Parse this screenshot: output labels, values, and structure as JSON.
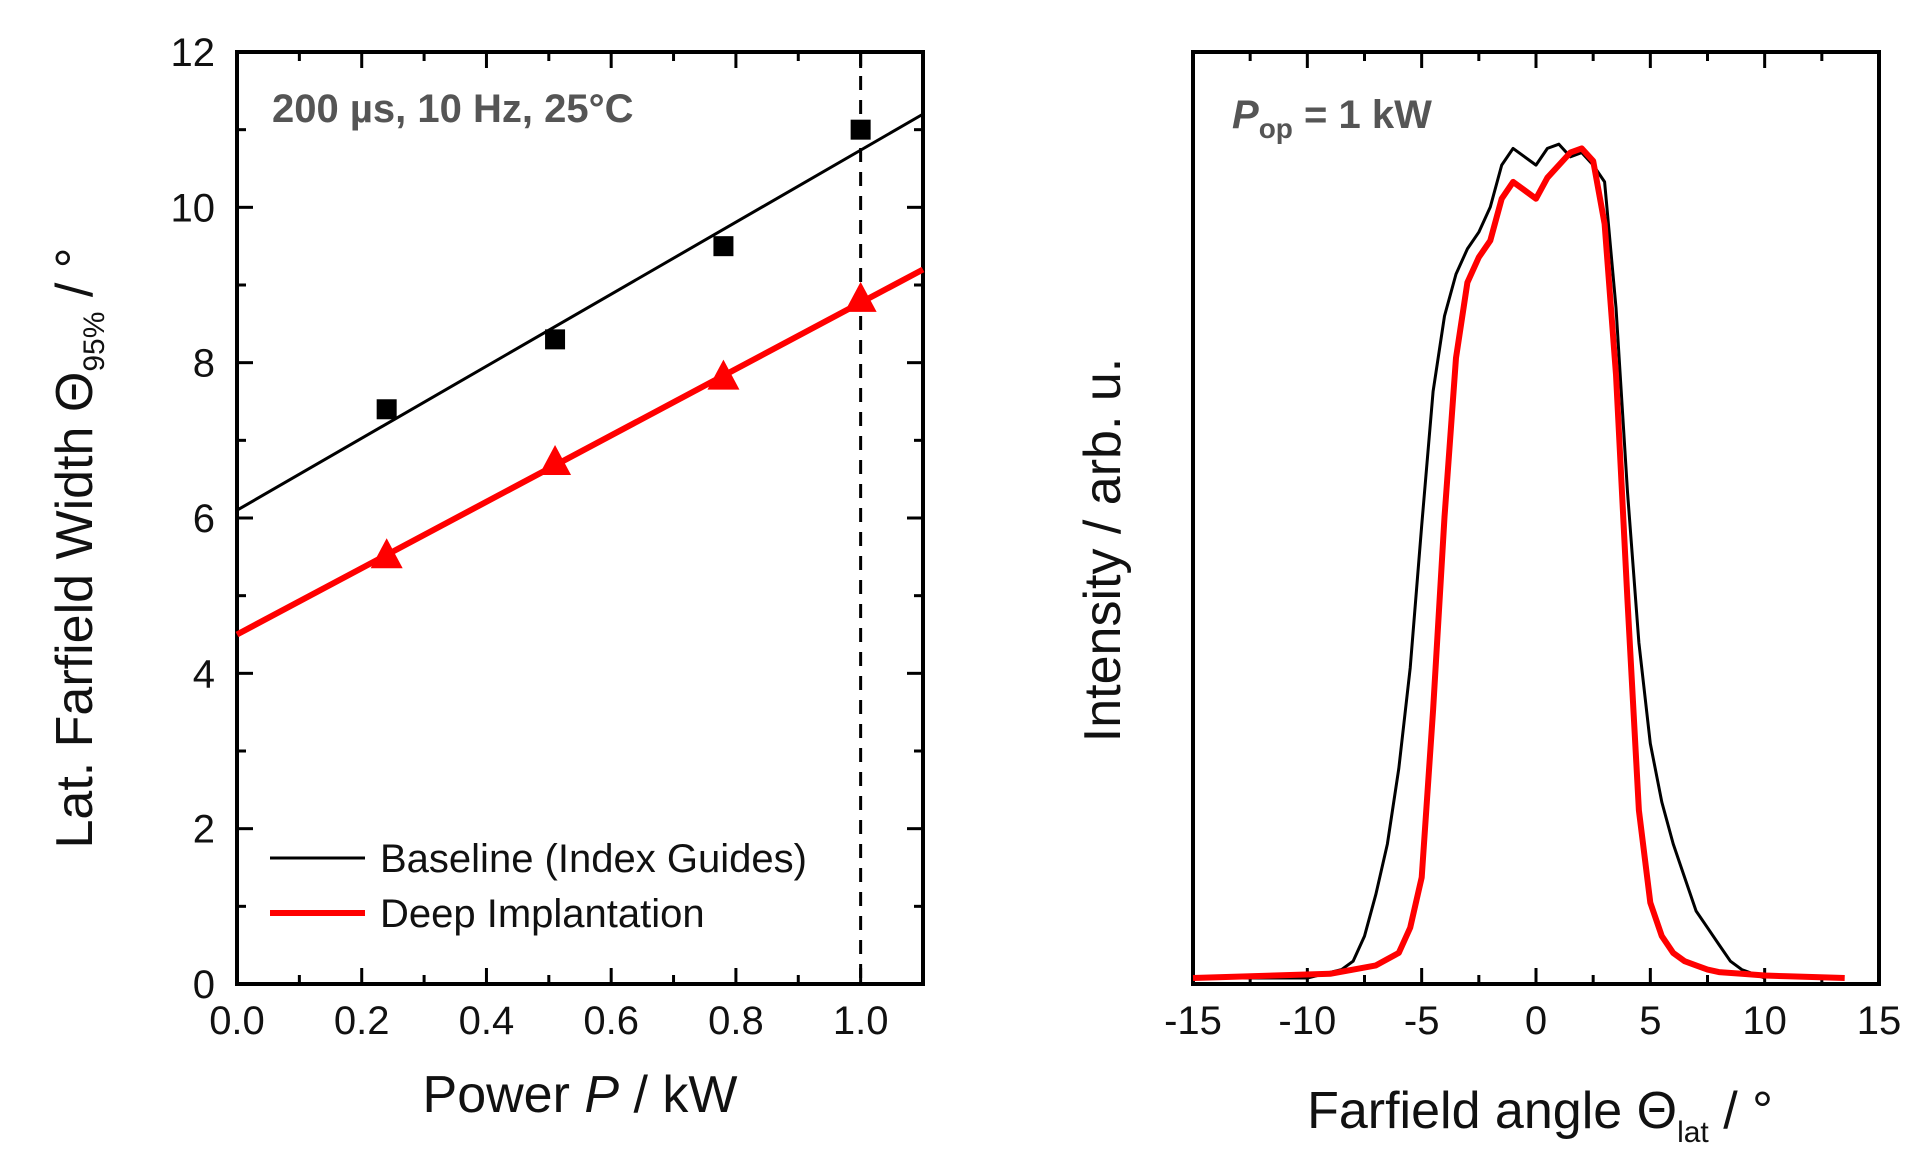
{
  "chart_data": [
    {
      "type": "line",
      "annotation": "200 µs, 10 Hz, 25°C",
      "xlabel": {
        "prefix": "Power ",
        "symbol": "P",
        "suffix": " / kW"
      },
      "ylabel": {
        "prefix": "Lat. Farfield Width Θ",
        "sub": "95%",
        "suffix": " / °"
      },
      "xlim": [
        0.0,
        1.1
      ],
      "ylim": [
        0,
        12
      ],
      "xticks": [
        "0.0",
        "0.2",
        "0.4",
        "0.6",
        "0.8",
        "1.0"
      ],
      "yticks": [
        "0",
        "2",
        "4",
        "6",
        "8",
        "10",
        "12"
      ],
      "grid": false,
      "legend_position": "bottom-left",
      "reference_line_x": 1.0,
      "series": [
        {
          "name": "Baseline (Index Guides)",
          "color": "#000000",
          "marker": "square",
          "points_x": [
            0.24,
            0.51,
            0.78,
            1.0
          ],
          "points_y": [
            7.4,
            8.3,
            9.5,
            11.0
          ],
          "fit": {
            "x": [
              0.0,
              1.1
            ],
            "y": [
              6.1,
              11.2
            ]
          }
        },
        {
          "name": "Deep Implantation",
          "color": "#ff0000",
          "marker": "triangle",
          "points_x": [
            0.24,
            0.51,
            0.78,
            1.0
          ],
          "points_y": [
            5.5,
            6.7,
            7.8,
            8.8
          ],
          "fit": {
            "x": [
              0.0,
              1.1
            ],
            "y": [
              4.5,
              9.2
            ]
          }
        }
      ]
    },
    {
      "type": "line",
      "annotation": {
        "symbol": "P",
        "sub": "op",
        "suffix": " = 1 kW"
      },
      "xlabel": {
        "prefix": "Farfield angle Θ",
        "sub": "lat",
        "suffix": " / °"
      },
      "ylabel": "Intensity / arb. u.",
      "xlim": [
        -15,
        15
      ],
      "ylim": [
        0,
        1
      ],
      "xticks": [
        "-15",
        "-10",
        "-5",
        "0",
        "5",
        "10",
        "15"
      ],
      "grid": false,
      "series": [
        {
          "color": "#000000",
          "x": [
            -15,
            -10,
            -8.5,
            -8,
            -7.5,
            -7,
            -6.5,
            -6,
            -5.5,
            -5,
            -4.5,
            -4,
            -3.5,
            -3,
            -2.5,
            -2,
            -1.5,
            -1,
            -0.5,
            0,
            0.5,
            1,
            1.5,
            2,
            2.5,
            3,
            3.5,
            4,
            4.5,
            5,
            5.5,
            6,
            6.5,
            7,
            7.5,
            8,
            8.5,
            9,
            9.5,
            10
          ],
          "y": [
            0,
            0,
            0.01,
            0.02,
            0.05,
            0.1,
            0.16,
            0.25,
            0.37,
            0.54,
            0.7,
            0.79,
            0.84,
            0.87,
            0.89,
            0.92,
            0.97,
            0.99,
            0.98,
            0.97,
            0.99,
            0.995,
            0.98,
            0.985,
            0.97,
            0.95,
            0.8,
            0.58,
            0.4,
            0.28,
            0.21,
            0.16,
            0.12,
            0.08,
            0.06,
            0.04,
            0.02,
            0.01,
            0.005,
            0
          ]
        },
        {
          "color": "#ff0000",
          "x": [
            -15,
            -9,
            -7,
            -6,
            -5.5,
            -5,
            -4.5,
            -4,
            -3.5,
            -3,
            -2.5,
            -2,
            -1.5,
            -1,
            -0.5,
            0,
            0.5,
            1,
            1.5,
            2,
            2.5,
            3,
            3.5,
            4,
            4.5,
            5,
            5.5,
            6,
            6.5,
            7,
            7.5,
            8,
            9,
            10,
            11,
            13.5
          ],
          "y": [
            0,
            0.005,
            0.015,
            0.03,
            0.06,
            0.12,
            0.32,
            0.55,
            0.74,
            0.83,
            0.86,
            0.88,
            0.93,
            0.95,
            0.94,
            0.93,
            0.955,
            0.97,
            0.985,
            0.99,
            0.975,
            0.9,
            0.72,
            0.45,
            0.2,
            0.09,
            0.05,
            0.03,
            0.02,
            0.015,
            0.01,
            0.007,
            0.005,
            0.003,
            0.002,
            0
          ]
        }
      ]
    }
  ]
}
